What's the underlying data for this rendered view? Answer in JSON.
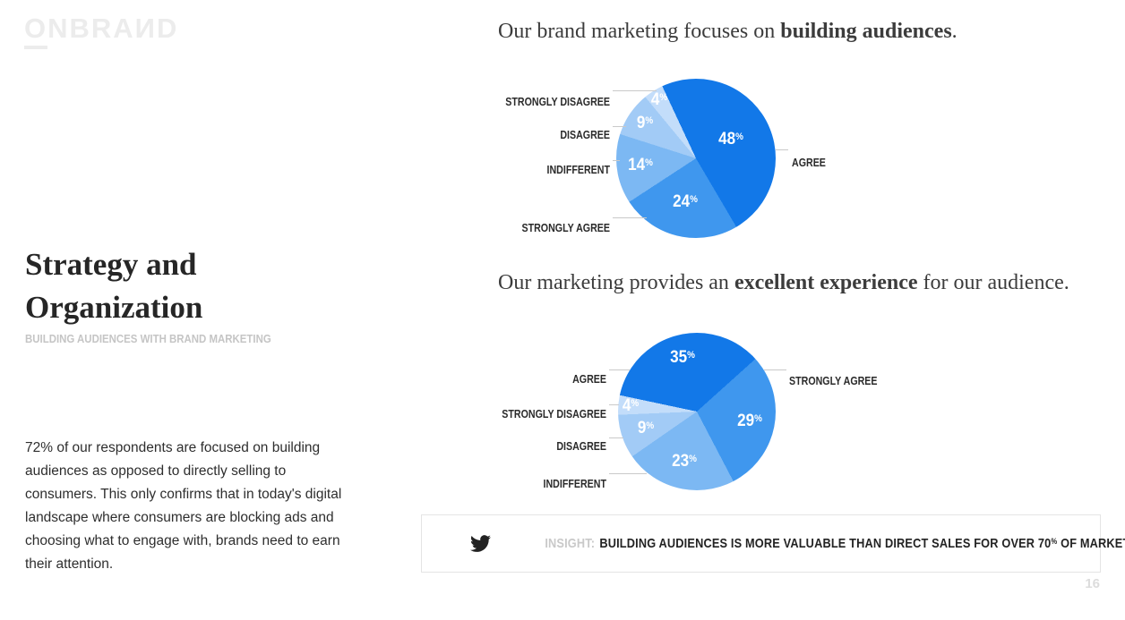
{
  "logo": {
    "first_letter": "O",
    "rest": "NBRAИD"
  },
  "heading": {
    "title": "Strategy and Organization",
    "subtitle": "BUILDING AUDIENCES WITH BRAND MARKETING"
  },
  "body_text": "72% of our respondents are focused on building audiences as opposed to directly selling to consumers. This only confirms that in today's digital landscape where consumers are blocking ads and choosing what to engage with, brands need to earn their attention.",
  "percent_sign": "%",
  "insight": {
    "prefix": "INSIGHT:",
    "text_before": "BUILDING AUDIENCES IS MORE VALUABLE THAN DIRECT SALES FOR OVER 70",
    "pct": "%",
    "text_after": " OF MARKETERS."
  },
  "page_number": "16",
  "colors": {
    "pie_dark": "#1278e8",
    "pie_medium": "#3f97ee",
    "pie_light": "#7cb8f3",
    "pie_lighter": "#a2cbf6",
    "pie_lightest": "#c3ddfa",
    "leader_line": "#c9c9c9"
  },
  "chart_data": [
    {
      "type": "pie",
      "title": "Our brand marketing focuses on building audiences.",
      "title_prefix": "Our brand marketing focuses on ",
      "title_bold": "building audiences",
      "title_suffix": ".",
      "legend_position": "outside-left",
      "start_angle_deg": -25,
      "slices": [
        {
          "label": "AGREE",
          "value": 48,
          "color": "#1278e8",
          "label_r": 0.5
        },
        {
          "label": "STRONGLY AGREE",
          "value": 24,
          "color": "#3f97ee",
          "label_r": 0.57
        },
        {
          "label": "INDIFFERENT",
          "value": 14,
          "color": "#7cb8f3",
          "label_r": 0.7
        },
        {
          "label": "DISAGREE",
          "value": 9,
          "color": "#a2cbf6",
          "label_r": 0.78
        },
        {
          "label": "STRONGLY DISAGREE",
          "value": 4,
          "color": "#c3ddfa",
          "label_r": 0.86
        }
      ]
    },
    {
      "type": "pie",
      "title": "Our marketing provides an excellent experience for our audience.",
      "title_prefix": "Our marketing provides an ",
      "title_bold": "excellent experience",
      "title_suffix": " for our audience.",
      "legend_position": "outside-left",
      "start_angle_deg": -78,
      "slices": [
        {
          "label": "AGREE",
          "value": 35,
          "color": "#1278e8",
          "label_r": 0.71
        },
        {
          "label": "STRONGLY AGREE",
          "value": 29,
          "color": "#3f97ee",
          "label_r": 0.68
        },
        {
          "label": "INDIFFERENT",
          "value": 23,
          "color": "#7cb8f3",
          "label_r": 0.65
        },
        {
          "label": "DISAGREE",
          "value": 9,
          "color": "#a2cbf6",
          "label_r": 0.68
        },
        {
          "label": "STRONGLY DISAGREE",
          "value": 4,
          "color": "#c3ddfa",
          "label_r": 0.84
        }
      ]
    }
  ]
}
